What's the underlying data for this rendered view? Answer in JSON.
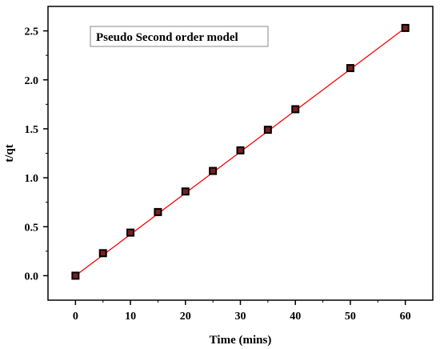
{
  "chart_data": {
    "type": "scatter",
    "title": "",
    "legend_label": "Pseudo Second order model",
    "legend_position": "top-left",
    "xlabel": "Time (mins)",
    "ylabel": "t/qt",
    "xlim": [
      -5,
      65
    ],
    "ylim": [
      -0.25,
      2.75
    ],
    "xticks": [
      0,
      10,
      20,
      30,
      40,
      50,
      60
    ],
    "xtick_labels": [
      "0",
      "10",
      "20",
      "30",
      "40",
      "50",
      "60"
    ],
    "yticks": [
      0.0,
      0.5,
      1.0,
      1.5,
      2.0,
      2.5
    ],
    "ytick_labels": [
      "0.0",
      "0.5",
      "1.0",
      "1.5",
      "2.0",
      "2.5"
    ],
    "grid": false,
    "series": [
      {
        "x": [
          0,
          5,
          10,
          15,
          20,
          25,
          30,
          35,
          40,
          50,
          60
        ],
        "y": [
          0.0,
          0.23,
          0.44,
          0.65,
          0.86,
          1.07,
          1.28,
          1.49,
          1.7,
          2.12,
          2.53
        ],
        "marker": "square",
        "marker_color": "#000000",
        "marker_fill": "#7a1f1f"
      }
    ],
    "fit_line": {
      "x": [
        0,
        60
      ],
      "y": [
        0.0,
        2.53
      ],
      "color": "#ff0000"
    }
  }
}
